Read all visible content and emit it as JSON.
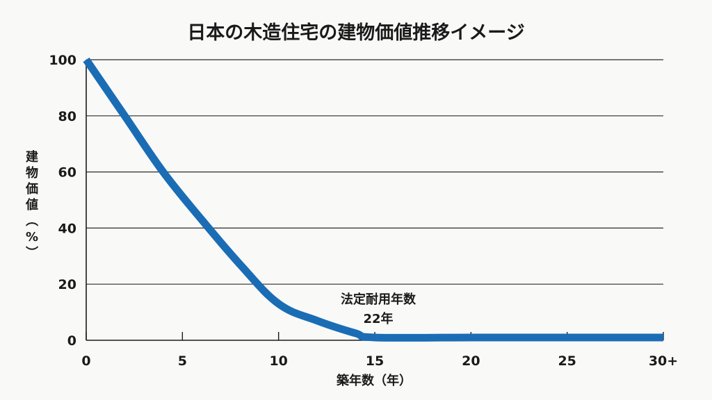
{
  "chart_data": {
    "type": "line",
    "title": "日本の木造住宅の建物価値推移イメージ",
    "xlabel": "築年数（年）",
    "ylabel": "建物価値（%）",
    "x_ticks": [
      0,
      5,
      10,
      15,
      20,
      25,
      30
    ],
    "x_tick_labels": [
      "0",
      "5",
      "10",
      "15",
      "20",
      "25",
      "30+"
    ],
    "y_ticks": [
      0,
      20,
      40,
      60,
      80,
      100
    ],
    "y_tick_labels": [
      "0",
      "20",
      "40",
      "60",
      "80",
      "100"
    ],
    "xlim": [
      0,
      30
    ],
    "ylim": [
      0,
      100
    ],
    "grid": "horizontal",
    "series": [
      {
        "color": "#1a6db5",
        "x": [
          0,
          2,
          4,
          6,
          8,
          10,
          12,
          14,
          15,
          20,
          25,
          30
        ],
        "y": [
          100,
          80,
          60,
          43,
          27,
          13,
          7,
          2.5,
          1,
          1,
          1,
          1
        ]
      }
    ],
    "annotation": {
      "line1": "法定耐用年数",
      "line2": "22年"
    }
  }
}
